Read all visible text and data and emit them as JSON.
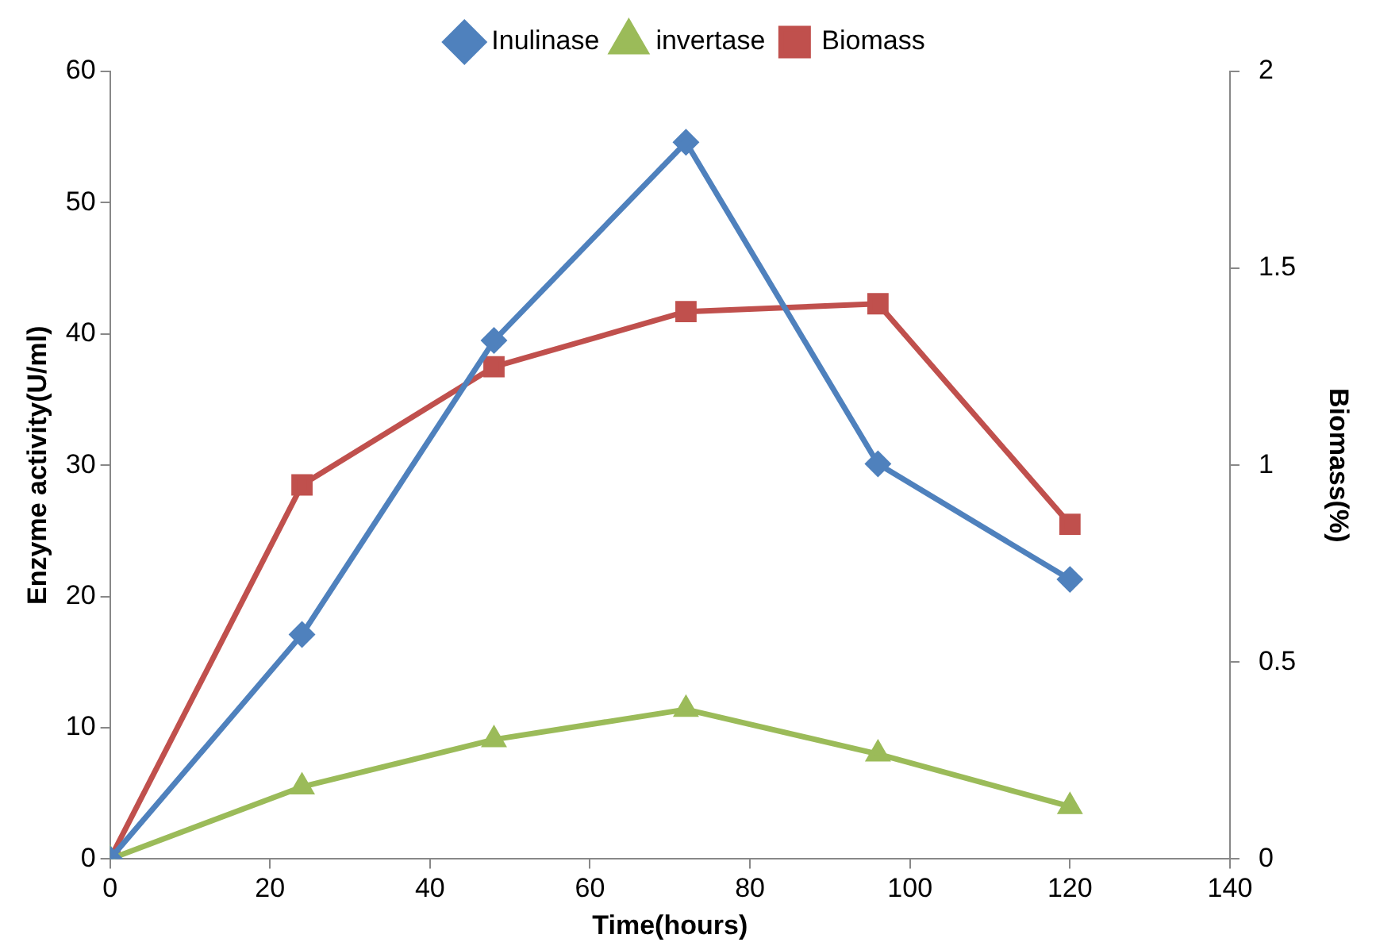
{
  "chart_data": {
    "type": "line",
    "xlabel": "Time(hours)",
    "ylabel": "Enzyme activity(U/ml)",
    "y2label": "Biomass(%)",
    "x": [
      0,
      24,
      48,
      72,
      96,
      120
    ],
    "xlim": [
      0,
      140
    ],
    "xticks": [
      0,
      20,
      40,
      60,
      80,
      100,
      120,
      140
    ],
    "ylim": [
      0,
      60
    ],
    "yticks": [
      0,
      10,
      20,
      30,
      40,
      50,
      60
    ],
    "y2lim": [
      0,
      2
    ],
    "y2ticks": [
      0,
      0.5,
      1,
      1.5,
      2
    ],
    "grid": false,
    "legend": "top",
    "series": [
      {
        "name": "Inulinase",
        "color": "#4f81bd",
        "marker": "diamond",
        "values": [
          0,
          17.1,
          39.5,
          54.6,
          30.1,
          21.3
        ]
      },
      {
        "name": "invertase",
        "color": "#9bbb59",
        "marker": "triangle",
        "values": [
          0,
          5.5,
          9.1,
          11.4,
          8.0,
          4.0
        ]
      },
      {
        "name": "Biomass",
        "color": "#c0504d",
        "marker": "square",
        "axis": "y2",
        "values": [
          0,
          0.95,
          1.25,
          1.39,
          1.41,
          0.85
        ]
      }
    ]
  }
}
